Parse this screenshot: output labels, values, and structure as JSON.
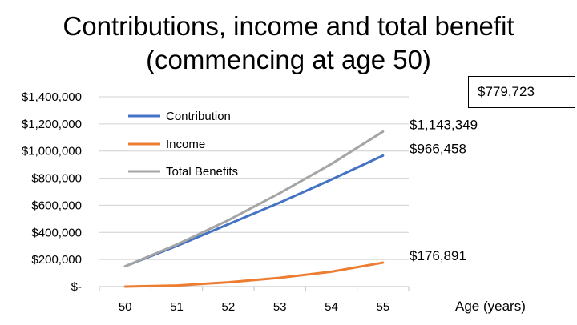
{
  "chart_data": {
    "type": "line",
    "title_lines": [
      "Contributions, income and total benefit",
      "(commencing at age 50)"
    ],
    "xlabel": "Age (years)",
    "ylabel": "",
    "x": [
      50,
      51,
      52,
      53,
      54,
      55
    ],
    "y_ticks": [
      0,
      200000,
      400000,
      600000,
      800000,
      1000000,
      1200000,
      1400000
    ],
    "y_tick_labels": [
      "$-",
      "$200,000",
      "$400,000",
      "$600,000",
      "$800,000",
      "$1,000,000",
      "$1,200,000",
      "$1,400,000"
    ],
    "ylim": [
      0,
      1400000
    ],
    "grid": "horizontal",
    "legend_position": "top-left inside plot",
    "series": [
      {
        "name": "Contribution",
        "color": "#4472C4",
        "values": [
          150000,
          300000,
          460000,
          620000,
          790000,
          966458
        ]
      },
      {
        "name": "Income",
        "color": "#ED7D31",
        "values": [
          0,
          8000,
          32000,
          65000,
          110000,
          176891
        ]
      },
      {
        "name": "Total Benefits",
        "color": "#A5A5A5",
        "values": [
          150000,
          310000,
          490000,
          690000,
          905000,
          1143349
        ]
      }
    ],
    "end_labels": [
      "$966,458",
      "$176,891",
      "$1,143,349"
    ],
    "callout": "$779,723"
  }
}
